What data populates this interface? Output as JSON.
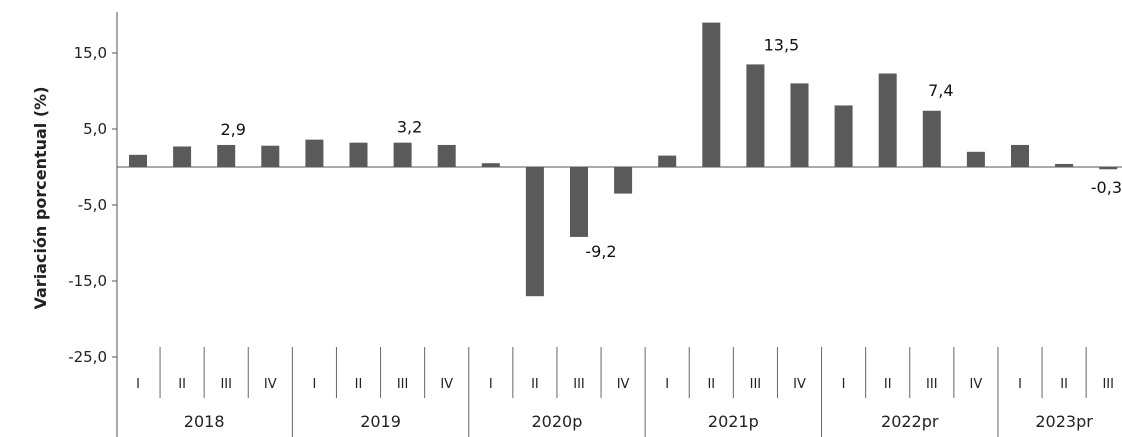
{
  "chart_data": {
    "type": "bar",
    "ylabel": "Variación porcentual (%)",
    "ylim": [
      -25,
      20
    ],
    "yticks": [
      15,
      5,
      -5,
      -15,
      -25
    ],
    "ytick_labels": [
      "15,0",
      "5,0",
      "-5,0",
      "-15,0",
      "-25,0"
    ],
    "grid": false,
    "legend": "none",
    "bar_color": "#5a5a5a",
    "quarters": [
      "I",
      "II",
      "III",
      "IV",
      "I",
      "II",
      "III",
      "IV",
      "I",
      "II",
      "III",
      "IV",
      "I",
      "II",
      "III",
      "IV",
      "I",
      "II",
      "III",
      "IV",
      "I",
      "II",
      "III"
    ],
    "years": [
      {
        "label": "2018",
        "count": 4
      },
      {
        "label": "2019",
        "count": 4
      },
      {
        "label": "2020p",
        "count": 4
      },
      {
        "label": "2021p",
        "count": 4
      },
      {
        "label": "2022pr",
        "count": 4
      },
      {
        "label": "2023pr",
        "count": 3
      }
    ],
    "values": [
      1.6,
      2.7,
      2.9,
      2.8,
      3.6,
      3.2,
      3.2,
      2.9,
      0.5,
      -17.0,
      -9.2,
      -3.5,
      1.5,
      19.0,
      13.5,
      11.0,
      8.1,
      12.3,
      7.4,
      2.0,
      2.9,
      0.4,
      -0.3
    ],
    "data_labels": [
      {
        "index": 2,
        "text": "2,9"
      },
      {
        "index": 6,
        "text": "3,2"
      },
      {
        "index": 10,
        "text": "-9,2"
      },
      {
        "index": 14,
        "text": "13,5"
      },
      {
        "index": 18,
        "text": "7,4"
      },
      {
        "index": 22,
        "text": "-0,3"
      }
    ]
  }
}
